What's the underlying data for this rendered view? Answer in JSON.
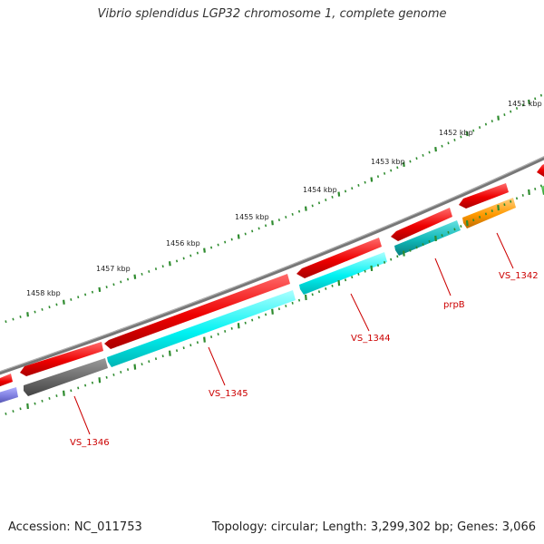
{
  "title": "Vibrio splendidus LGP32 chromosome 1, complete genome",
  "footer": {
    "accession": "Accession: NC_011753",
    "summary": "Topology: circular; Length: 3,299,302 bp; Genes: 3,066"
  },
  "ruler_labels": [
    "1451 kbp",
    "1452 kbp",
    "1453 kbp",
    "1454 kbp",
    "1455 kbp",
    "1456 kbp",
    "1457 kbp",
    "1458 kbp"
  ],
  "gene_labels": [
    "VS_1342",
    "prpB",
    "VS_1344",
    "VS_1345",
    "VS_1346"
  ],
  "colors": {
    "backbone": "#808080",
    "forward_genes": "#ff0000",
    "ticks": "#2e8b2e",
    "label_text": "#cc0000",
    "prpB": "#1fc8c8",
    "VS_1342": "#ff9900",
    "VS_1344": "#00ffff",
    "VS_1345": "#00ffff",
    "VS_1346": "#666666",
    "left_partial": "#7b7bdd"
  }
}
